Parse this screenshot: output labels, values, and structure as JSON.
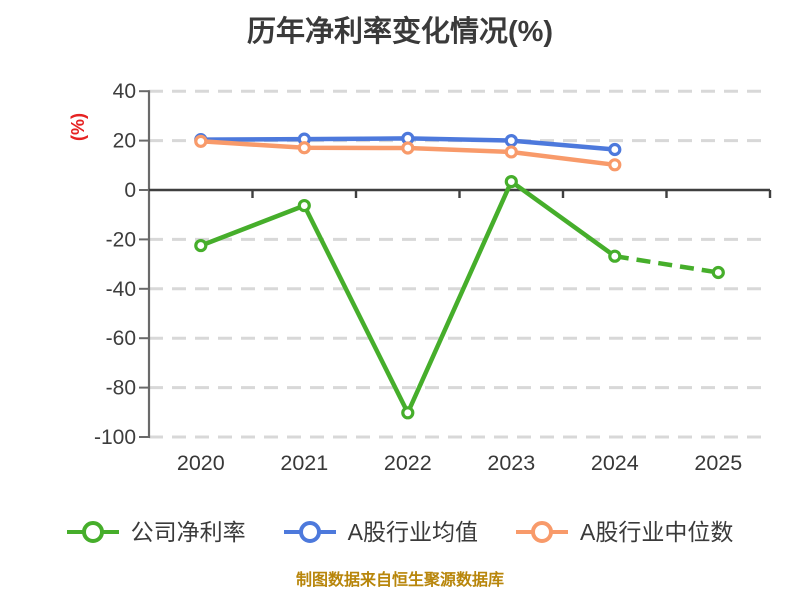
{
  "chart_data": {
    "type": "line",
    "title": "历年净利率变化情况(%)",
    "ylabel": "(%)",
    "categories": [
      "2020",
      "2021",
      "2022",
      "2023",
      "2024",
      "2025"
    ],
    "series": [
      {
        "key": "company-net-margin",
        "name": "公司净利率",
        "color": "#46ae2b",
        "values": [
          -22.5,
          -6.3,
          -90.2,
          3.4,
          -26.8,
          -33.4
        ],
        "last_segment_dashed": true
      },
      {
        "key": "a-share-industry-mean",
        "name": "A股行业均值",
        "color": "#4d79dc",
        "values": [
          20.4,
          20.6,
          20.9,
          20.0,
          16.4,
          null
        ],
        "last_segment_dashed": false
      },
      {
        "key": "a-share-industry-median",
        "name": "A股行业中位数",
        "color": "#f89a6a",
        "values": [
          19.7,
          17.1,
          17.0,
          15.4,
          10.2,
          null
        ],
        "last_segment_dashed": false
      }
    ],
    "ylim": [
      -100,
      40
    ],
    "yticks": [
      40,
      20,
      0,
      -20,
      -40,
      -60,
      -80,
      -100
    ],
    "grid": "horizontal-dashed",
    "legend_position": "bottom",
    "footer": "制图数据来自恒生聚源数据库"
  },
  "colors": {
    "title": "#3a3a3a",
    "axis": "#6a6a6a",
    "zero_line": "#3f3f3f",
    "grid": "#d8d8d8",
    "tick_label": "#3d3d3d",
    "x_label": "#383838",
    "unit_label": "#e62222",
    "footer": "#b8860b",
    "legend_text": "#3a3a3a",
    "background": "#ffffff",
    "marker_fill": "#ffffff"
  }
}
